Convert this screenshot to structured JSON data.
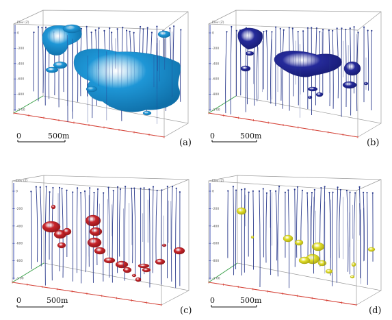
{
  "panels": [
    {
      "id": "a",
      "label": "(a)",
      "scale_zero": "0",
      "scale_length": "500m",
      "axis_title": "Elev (Z)",
      "axis_ticks": [
        "0",
        "-200",
        "-400",
        "-600",
        "-800",
        "-1 00"
      ],
      "body_color": "#1e96d6",
      "body_dark": "#0f6fa8"
    },
    {
      "id": "b",
      "label": "(b)",
      "scale_zero": "0",
      "scale_length": "500m",
      "axis_title": "Elev (Z)",
      "axis_ticks": [
        "0",
        "-200",
        "-400",
        "-600",
        "-800",
        "-1 00"
      ],
      "body_color": "#252a9a",
      "body_dark": "#151a70"
    },
    {
      "id": "c",
      "label": "(c)",
      "scale_zero": "0",
      "scale_length": "500m",
      "axis_title": "Elev (Z)",
      "axis_ticks": [
        "0",
        "-200",
        "-400",
        "-600",
        "-800",
        "-1 00"
      ],
      "body_color": "#c9262b",
      "body_dark": "#8e1418"
    },
    {
      "id": "d",
      "label": "(d)",
      "scale_zero": "0",
      "scale_length": "500m",
      "axis_title": "Elev (Z)",
      "axis_ticks": [
        "0",
        "-200",
        "-400",
        "-600",
        "-800",
        "-1 00"
      ],
      "body_color": "#e3e02a",
      "body_dark": "#a9a510"
    }
  ],
  "colors": {
    "drillhole": "#2a3a8c",
    "box_edge": "#9a9a9a",
    "axis_red": "#d8453a",
    "axis_green": "#3aa34a",
    "axis_blue": "#3d4fb0"
  }
}
